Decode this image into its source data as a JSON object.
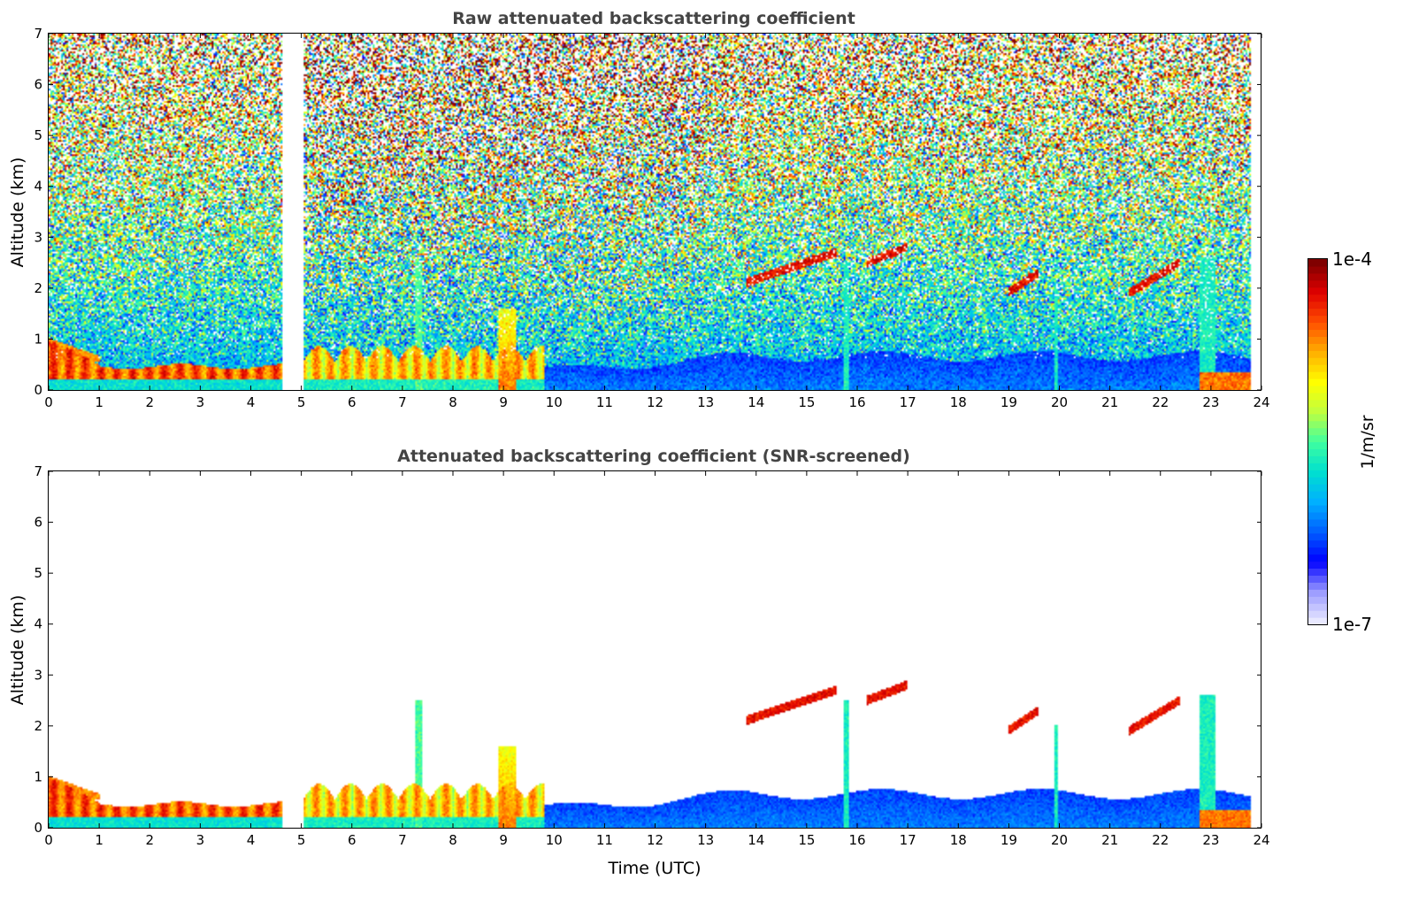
{
  "chart_data": [
    {
      "type": "heatmap",
      "title": "Raw attenuated backscattering coefficient",
      "xlabel": "",
      "ylabel": "Altitude (km)",
      "xlim": [
        0,
        24
      ],
      "ylim": [
        0,
        7
      ],
      "xticks": [
        0,
        1,
        2,
        3,
        4,
        5,
        6,
        7,
        8,
        9,
        10,
        11,
        12,
        13,
        14,
        15,
        16,
        17,
        18,
        19,
        20,
        21,
        22,
        23,
        24
      ],
      "yticks": [
        0,
        1,
        2,
        3,
        4,
        5,
        6,
        7
      ],
      "data_gap_hours": [
        4.6,
        5.05
      ],
      "data_end_hour": 23.8,
      "features": [
        {
          "kind": "boundary_layer_aerosol",
          "x_range": [
            0,
            4.6
          ],
          "altitude_km": [
            0.2,
            0.5
          ],
          "level": "high"
        },
        {
          "kind": "residual_layer",
          "x_range": [
            0,
            1.0
          ],
          "altitude_km": [
            0.6,
            1.0
          ],
          "level": "high"
        },
        {
          "kind": "boundary_layer_aerosol",
          "x_range": [
            9.8,
            23.8
          ],
          "altitude_km": [
            0,
            0.9
          ],
          "level": "low"
        },
        {
          "kind": "cloud",
          "x_range": [
            13.8,
            15.6
          ],
          "altitude_km": [
            2.1,
            2.7
          ],
          "level": "high"
        },
        {
          "kind": "cloud",
          "x_range": [
            16.2,
            17.0
          ],
          "altitude_km": [
            2.5,
            2.8
          ],
          "level": "high"
        },
        {
          "kind": "cloud",
          "x_range": [
            19.0,
            19.6
          ],
          "altitude_km": [
            1.9,
            2.3
          ],
          "level": "high"
        },
        {
          "kind": "cloud",
          "x_range": [
            21.4,
            22.4
          ],
          "altitude_km": [
            1.9,
            2.5
          ],
          "level": "high"
        },
        {
          "kind": "precipitation",
          "x_range": [
            8.9,
            9.25
          ],
          "altitude_km": [
            0,
            1.5
          ],
          "level": "high"
        },
        {
          "kind": "precipitation",
          "x_range": [
            22.8,
            23.1
          ],
          "altitude_km": [
            0,
            2.5
          ],
          "level": "medium"
        }
      ]
    },
    {
      "type": "heatmap",
      "title": "Attenuated backscattering coefficient (SNR-screened)",
      "xlabel": "Time (UTC)",
      "ylabel": "Altitude (km)",
      "xlim": [
        0,
        24
      ],
      "ylim": [
        0,
        7
      ],
      "xticks": [
        0,
        1,
        2,
        3,
        4,
        5,
        6,
        7,
        8,
        9,
        10,
        11,
        12,
        13,
        14,
        15,
        16,
        17,
        18,
        19,
        20,
        21,
        22,
        23,
        24
      ],
      "yticks": [
        0,
        1,
        2,
        3,
        4,
        5,
        6,
        7
      ],
      "screened": true
    }
  ],
  "colorbar": {
    "label": "1/m/sr",
    "min_label": "1e-7",
    "max_label": "1e-4",
    "scale": "log",
    "colormap": [
      "#e8e8ff",
      "#9a9aff",
      "#0000ff",
      "#0060ff",
      "#00b0ff",
      "#00e0d0",
      "#40ffa0",
      "#c0ff40",
      "#ffff00",
      "#ffb000",
      "#ff5000",
      "#e00000",
      "#800000"
    ]
  }
}
